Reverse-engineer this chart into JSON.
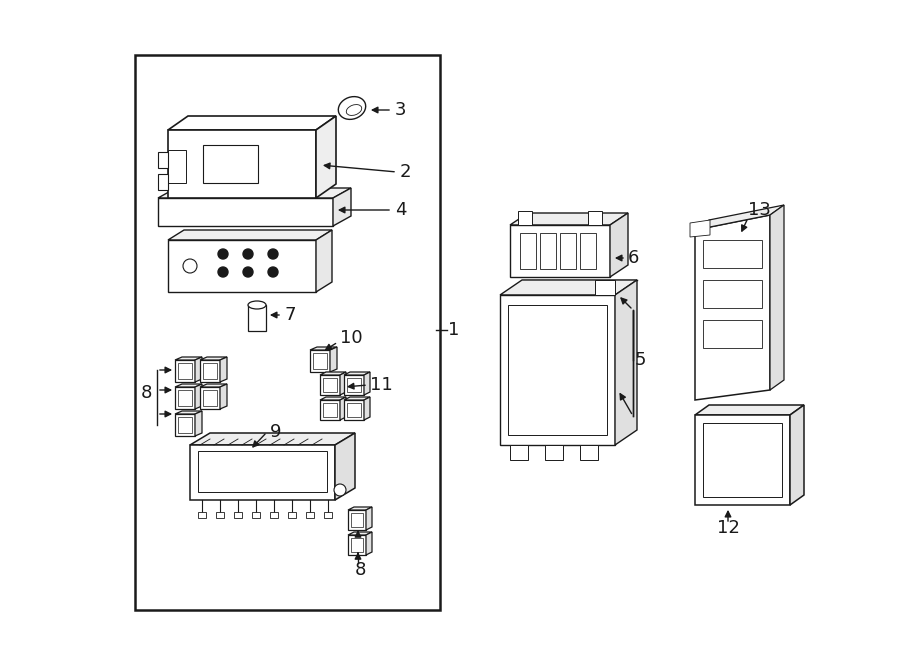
{
  "bg_color": "#ffffff",
  "line_color": "#1a1a1a",
  "lw_heavy": 1.4,
  "lw_med": 1.0,
  "lw_light": 0.7,
  "font_size_label": 13,
  "font_size_num": 14
}
